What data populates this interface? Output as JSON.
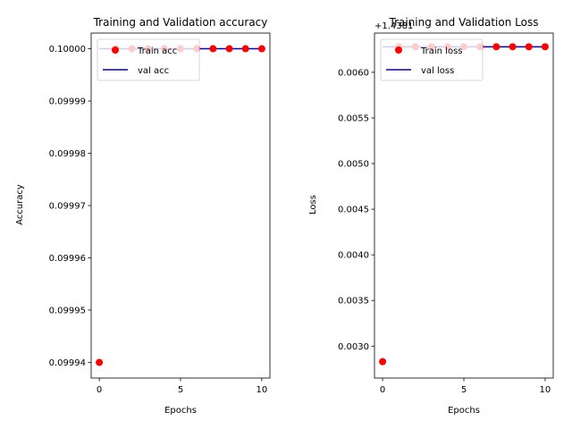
{
  "chart_data": [
    {
      "type": "line",
      "title": "Training and Validation accuracy",
      "xlabel": "Epochs",
      "ylabel": "Accuracy",
      "xlim": [
        -0.5,
        10.5
      ],
      "ylim": [
        0.099937,
        0.100003
      ],
      "xticks": [
        0,
        5,
        10
      ],
      "xtick_labels": [
        "0",
        "5",
        "10"
      ],
      "yticks": [
        0.09994,
        0.09995,
        0.09996,
        0.09997,
        0.09998,
        0.09999,
        0.1
      ],
      "ytick_labels": [
        "0.09994",
        "0.09995",
        "0.09996",
        "0.09997",
        "0.09998",
        "0.09999",
        "0.10000"
      ],
      "y_offset_text": "",
      "legend_placement": "upper-left",
      "grid": false,
      "series": [
        {
          "name": "Train acc",
          "style": "points",
          "color": "#ff0000",
          "x": [
            0,
            1,
            2,
            3,
            4,
            5,
            6,
            7,
            8,
            9,
            10
          ],
          "y": [
            0.09994,
            0.1,
            0.1,
            0.1,
            0.1,
            0.1,
            0.1,
            0.1,
            0.1,
            0.1,
            0.1
          ]
        },
        {
          "name": "val acc",
          "style": "line",
          "color": "#0000cc",
          "x": [
            0,
            1,
            2,
            3,
            4,
            5,
            6,
            7,
            8,
            9,
            10
          ],
          "y": [
            0.1,
            0.1,
            0.1,
            0.1,
            0.1,
            0.1,
            0.1,
            0.1,
            0.1,
            0.1,
            0.1
          ]
        }
      ]
    },
    {
      "type": "line",
      "title": "Training and Validation Loss",
      "xlabel": "Epochs",
      "ylabel": "Loss",
      "xlim": [
        -0.5,
        10.5
      ],
      "ylim": [
        0.00265,
        0.00643
      ],
      "xticks": [
        0,
        5,
        10
      ],
      "xtick_labels": [
        "0",
        "5",
        "10"
      ],
      "yticks": [
        0.003,
        0.0035,
        0.004,
        0.0045,
        0.005,
        0.0055,
        0.006
      ],
      "ytick_labels": [
        "0.0030",
        "0.0035",
        "0.0040",
        "0.0045",
        "0.0050",
        "0.0055",
        "0.0060"
      ],
      "y_offset_text": "+1.4381",
      "legend_placement": "upper-left",
      "grid": false,
      "series": [
        {
          "name": "Train loss",
          "style": "points",
          "color": "#ff0000",
          "x": [
            0,
            1,
            2,
            3,
            4,
            5,
            6,
            7,
            8,
            9,
            10
          ],
          "y": [
            0.00283,
            0.00628,
            0.00628,
            0.00628,
            0.00628,
            0.00628,
            0.00628,
            0.00628,
            0.00628,
            0.00628,
            0.00628
          ]
        },
        {
          "name": "val loss",
          "style": "line",
          "color": "#0000cc",
          "x": [
            0,
            1,
            2,
            3,
            4,
            5,
            6,
            7,
            8,
            9,
            10
          ],
          "y": [
            0.00628,
            0.00628,
            0.00628,
            0.00628,
            0.00628,
            0.00628,
            0.00628,
            0.00628,
            0.00628,
            0.00628,
            0.00628
          ]
        }
      ]
    }
  ]
}
